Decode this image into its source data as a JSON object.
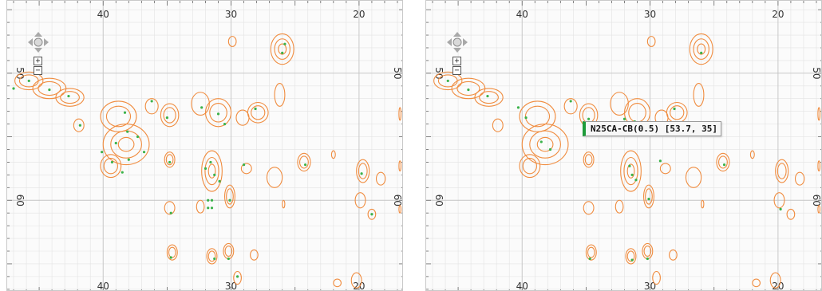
{
  "colors": {
    "contour": "#f08c3f",
    "peak": "#3bb24a",
    "grid_minor": "#e3e3e3",
    "grid_major": "#c4c4c4",
    "background": "#fbfbfb",
    "tooltip_accent": "#1e9c3a"
  },
  "axes": {
    "x_ticks": [
      {
        "value": 40,
        "label": "40"
      },
      {
        "value": 30,
        "label": "30"
      },
      {
        "value": 20,
        "label": "20"
      }
    ],
    "y_ticks": [
      {
        "value": 50,
        "label": "50"
      },
      {
        "value": 60,
        "label": "60"
      }
    ],
    "x_range": [
      47.5,
      16.5
    ],
    "y_range": [
      44.3,
      67.2
    ]
  },
  "navigation": {
    "pan_icon": "four-way-arrow-icon",
    "zoom_in_label": "+",
    "zoom_out_label": "−"
  },
  "panels": [
    {
      "id": "left",
      "tooltip": null
    },
    {
      "id": "right",
      "tooltip": {
        "text": "N25CA-CB(0.5) [53.7, 35]"
      }
    }
  ],
  "contours": [
    {
      "x": 45.8,
      "y": 50.6,
      "rx": 1.1,
      "ry": 0.7,
      "n": 2
    },
    {
      "x": 44.2,
      "y": 51.2,
      "rx": 1.3,
      "ry": 0.8,
      "n": 2
    },
    {
      "x": 42.6,
      "y": 51.9,
      "rx": 1.1,
      "ry": 0.7,
      "n": 2
    },
    {
      "x": 41.9,
      "y": 54.1,
      "rx": 0.4,
      "ry": 0.5,
      "n": 1
    },
    {
      "x": 38.8,
      "y": 53.4,
      "rx": 1.4,
      "ry": 1.2,
      "n": 2
    },
    {
      "x": 38.2,
      "y": 55.6,
      "rx": 1.8,
      "ry": 1.6,
      "n": 3
    },
    {
      "x": 39.4,
      "y": 57.3,
      "rx": 0.8,
      "ry": 0.9,
      "n": 2
    },
    {
      "x": 36.2,
      "y": 52.6,
      "rx": 0.5,
      "ry": 0.6,
      "n": 1
    },
    {
      "x": 34.8,
      "y": 53.3,
      "rx": 0.7,
      "ry": 0.9,
      "n": 2
    },
    {
      "x": 32.4,
      "y": 52.4,
      "rx": 0.7,
      "ry": 0.9,
      "n": 1
    },
    {
      "x": 31.0,
      "y": 53.1,
      "rx": 1.0,
      "ry": 1.1,
      "n": 2
    },
    {
      "x": 29.1,
      "y": 53.5,
      "rx": 0.5,
      "ry": 0.6,
      "n": 1
    },
    {
      "x": 27.9,
      "y": 53.1,
      "rx": 0.8,
      "ry": 0.8,
      "n": 2
    },
    {
      "x": 26.2,
      "y": 51.7,
      "rx": 0.4,
      "ry": 0.9,
      "n": 1
    },
    {
      "x": 26.0,
      "y": 48.1,
      "rx": 0.9,
      "ry": 1.2,
      "n": 3
    },
    {
      "x": 29.9,
      "y": 47.5,
      "rx": 0.3,
      "ry": 0.4,
      "n": 1
    },
    {
      "x": 34.8,
      "y": 56.8,
      "rx": 0.4,
      "ry": 0.6,
      "n": 2
    },
    {
      "x": 31.5,
      "y": 57.7,
      "rx": 0.8,
      "ry": 1.6,
      "n": 3
    },
    {
      "x": 28.8,
      "y": 57.5,
      "rx": 0.4,
      "ry": 0.4,
      "n": 1
    },
    {
      "x": 26.6,
      "y": 58.2,
      "rx": 0.6,
      "ry": 0.8,
      "n": 1
    },
    {
      "x": 24.3,
      "y": 57.0,
      "rx": 0.5,
      "ry": 0.7,
      "n": 2
    },
    {
      "x": 22.0,
      "y": 56.4,
      "rx": 0.15,
      "ry": 0.3,
      "n": 1
    },
    {
      "x": 19.7,
      "y": 57.7,
      "rx": 0.5,
      "ry": 0.9,
      "n": 2
    },
    {
      "x": 18.3,
      "y": 58.3,
      "rx": 0.35,
      "ry": 0.5,
      "n": 1
    },
    {
      "x": 19.9,
      "y": 60.0,
      "rx": 0.4,
      "ry": 0.6,
      "n": 1
    },
    {
      "x": 30.1,
      "y": 59.7,
      "rx": 0.4,
      "ry": 0.9,
      "n": 2
    },
    {
      "x": 32.4,
      "y": 60.5,
      "rx": 0.3,
      "ry": 0.5,
      "n": 1
    },
    {
      "x": 34.8,
      "y": 60.6,
      "rx": 0.4,
      "ry": 0.5,
      "n": 1
    },
    {
      "x": 25.9,
      "y": 60.3,
      "rx": 0.1,
      "ry": 0.3,
      "n": 1
    },
    {
      "x": 19.0,
      "y": 61.1,
      "rx": 0.3,
      "ry": 0.4,
      "n": 1
    },
    {
      "x": 34.6,
      "y": 64.1,
      "rx": 0.4,
      "ry": 0.6,
      "n": 2
    },
    {
      "x": 31.5,
      "y": 64.4,
      "rx": 0.4,
      "ry": 0.6,
      "n": 2
    },
    {
      "x": 30.2,
      "y": 64.0,
      "rx": 0.4,
      "ry": 0.6,
      "n": 2
    },
    {
      "x": 28.2,
      "y": 64.3,
      "rx": 0.3,
      "ry": 0.4,
      "n": 1
    },
    {
      "x": 29.5,
      "y": 66.1,
      "rx": 0.3,
      "ry": 0.5,
      "n": 1
    },
    {
      "x": 16.8,
      "y": 53.2,
      "rx": 0.08,
      "ry": 0.5,
      "n": 1
    },
    {
      "x": 16.8,
      "y": 57.3,
      "rx": 0.08,
      "ry": 0.4,
      "n": 1
    },
    {
      "x": 16.8,
      "y": 60.7,
      "rx": 0.08,
      "ry": 0.3,
      "n": 1
    },
    {
      "x": 21.7,
      "y": 66.5,
      "rx": 0.3,
      "ry": 0.3,
      "n": 1
    },
    {
      "x": 20.2,
      "y": 66.3,
      "rx": 0.4,
      "ry": 0.6,
      "n": 1
    }
  ],
  "peaks_left": [
    {
      "x": 47.0,
      "y": 51.2
    },
    {
      "x": 45.8,
      "y": 50.6
    },
    {
      "x": 44.2,
      "y": 51.3
    },
    {
      "x": 42.7,
      "y": 51.8
    },
    {
      "x": 41.8,
      "y": 54.1
    },
    {
      "x": 40.1,
      "y": 56.2
    },
    {
      "x": 39.3,
      "y": 57.0
    },
    {
      "x": 38.5,
      "y": 57.8
    },
    {
      "x": 39.0,
      "y": 55.5
    },
    {
      "x": 38.1,
      "y": 54.6
    },
    {
      "x": 37.3,
      "y": 55.0
    },
    {
      "x": 38.3,
      "y": 53.1
    },
    {
      "x": 36.8,
      "y": 56.2
    },
    {
      "x": 38.0,
      "y": 56.8
    },
    {
      "x": 36.2,
      "y": 52.2
    },
    {
      "x": 35.0,
      "y": 53.5
    },
    {
      "x": 32.3,
      "y": 52.7
    },
    {
      "x": 31.0,
      "y": 53.2
    },
    {
      "x": 30.5,
      "y": 54.0
    },
    {
      "x": 28.1,
      "y": 52.8
    },
    {
      "x": 26.0,
      "y": 48.4
    },
    {
      "x": 25.8,
      "y": 47.7
    },
    {
      "x": 34.8,
      "y": 57.0
    },
    {
      "x": 32.0,
      "y": 57.5
    },
    {
      "x": 31.3,
      "y": 58.0
    },
    {
      "x": 31.6,
      "y": 57.0
    },
    {
      "x": 30.9,
      "y": 58.5
    },
    {
      "x": 29.0,
      "y": 57.2
    },
    {
      "x": 24.2,
      "y": 57.2
    },
    {
      "x": 19.8,
      "y": 57.9
    },
    {
      "x": 31.8,
      "y": 60.0
    },
    {
      "x": 31.5,
      "y": 60.0
    },
    {
      "x": 31.8,
      "y": 60.6
    },
    {
      "x": 31.5,
      "y": 60.6
    },
    {
      "x": 30.1,
      "y": 60.0
    },
    {
      "x": 34.7,
      "y": 61.0
    },
    {
      "x": 34.7,
      "y": 64.5
    },
    {
      "x": 31.3,
      "y": 64.6
    },
    {
      "x": 30.2,
      "y": 64.6
    },
    {
      "x": 29.5,
      "y": 66.0
    },
    {
      "x": 19.0,
      "y": 61.1
    }
  ],
  "peaks_right": [
    {
      "x": 45.8,
      "y": 50.6
    },
    {
      "x": 44.2,
      "y": 51.3
    },
    {
      "x": 42.7,
      "y": 51.8
    },
    {
      "x": 40.3,
      "y": 52.7
    },
    {
      "x": 39.7,
      "y": 53.5
    },
    {
      "x": 38.5,
      "y": 55.4
    },
    {
      "x": 37.8,
      "y": 56.0
    },
    {
      "x": 36.2,
      "y": 52.2
    },
    {
      "x": 34.8,
      "y": 53.6
    },
    {
      "x": 32.0,
      "y": 53.6
    },
    {
      "x": 31.2,
      "y": 53.8
    },
    {
      "x": 28.1,
      "y": 52.8
    },
    {
      "x": 26.0,
      "y": 48.4
    },
    {
      "x": 31.4,
      "y": 58.0
    },
    {
      "x": 31.1,
      "y": 58.4
    },
    {
      "x": 31.6,
      "y": 57.3
    },
    {
      "x": 29.2,
      "y": 56.9
    },
    {
      "x": 24.2,
      "y": 57.2
    },
    {
      "x": 30.1,
      "y": 59.9
    },
    {
      "x": 34.7,
      "y": 64.6
    },
    {
      "x": 31.4,
      "y": 64.7
    },
    {
      "x": 30.2,
      "y": 64.6
    },
    {
      "x": 19.8,
      "y": 60.7
    }
  ]
}
